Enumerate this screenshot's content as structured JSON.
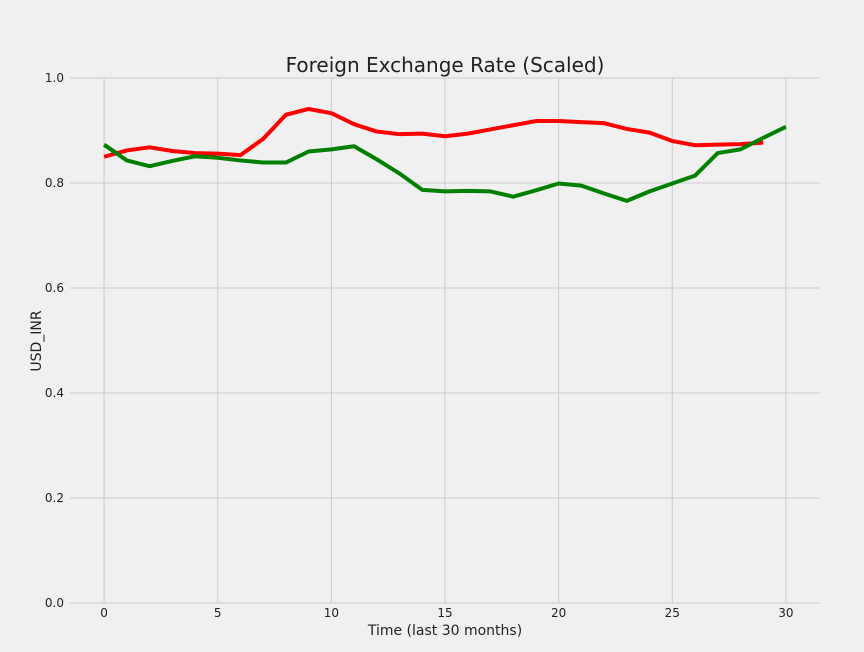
{
  "chart_data": {
    "type": "line",
    "title": "Foreign Exchange Rate (Scaled)",
    "xlabel": "Time (last 30 months)",
    "ylabel": "USD_INR",
    "xlim": [
      -1.5,
      31.5
    ],
    "ylim": [
      0.0,
      1.0
    ],
    "x_ticks": [
      0,
      5,
      10,
      15,
      20,
      25,
      30
    ],
    "y_ticks": [
      0.0,
      0.2,
      0.4,
      0.6,
      0.8,
      1.0
    ],
    "x_tick_labels": [
      "0",
      "5",
      "10",
      "15",
      "20",
      "25",
      "30"
    ],
    "y_tick_labels": [
      "0.0",
      "0.2",
      "0.4",
      "0.6",
      "0.8",
      "1.0"
    ],
    "grid": true,
    "background": "#f0f0f0",
    "grid_color": "#cbcbcb",
    "series": [
      {
        "color": "#ff0000",
        "x": [
          0,
          1,
          2,
          3,
          4,
          5,
          6,
          7,
          8,
          9,
          10,
          11,
          12,
          13,
          14,
          15,
          16,
          17,
          18,
          19,
          20,
          21,
          22,
          23,
          24,
          25,
          26,
          27,
          28,
          29
        ],
        "values": [
          0.85,
          0.862,
          0.868,
          0.861,
          0.857,
          0.856,
          0.853,
          0.884,
          0.93,
          0.941,
          0.933,
          0.912,
          0.898,
          0.893,
          0.894,
          0.889,
          0.894,
          0.902,
          0.91,
          0.918,
          0.918,
          0.916,
          0.914,
          0.903,
          0.896,
          0.88,
          0.872,
          0.873,
          0.874,
          0.877
        ]
      },
      {
        "color": "#008000",
        "x": [
          0,
          1,
          2,
          3,
          4,
          5,
          6,
          7,
          8,
          9,
          10,
          11,
          12,
          13,
          14,
          15,
          16,
          17,
          18,
          19,
          20,
          21,
          22,
          23,
          24,
          25,
          26,
          27,
          28,
          29,
          30
        ],
        "values": [
          0.873,
          0.843,
          0.832,
          0.842,
          0.851,
          0.848,
          0.843,
          0.839,
          0.839,
          0.86,
          0.864,
          0.87,
          0.845,
          0.818,
          0.787,
          0.784,
          0.785,
          0.784,
          0.774,
          0.786,
          0.799,
          0.795,
          0.78,
          0.766,
          0.784,
          0.799,
          0.814,
          0.857,
          0.864,
          0.886,
          0.907
        ]
      }
    ]
  }
}
